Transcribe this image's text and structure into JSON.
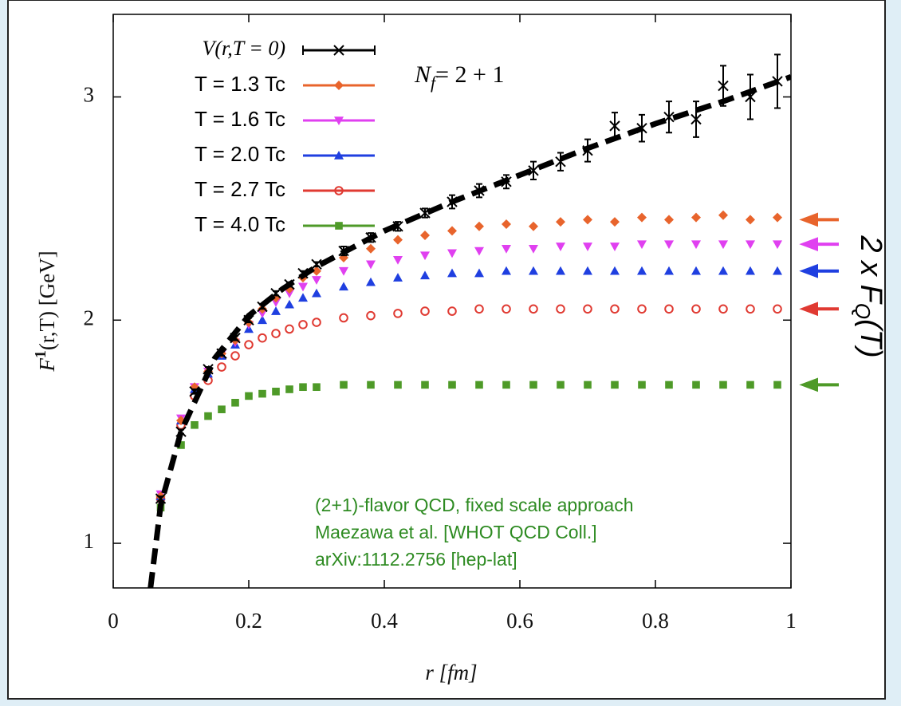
{
  "chart_data": {
    "type": "scatter",
    "xlabel": "r [fm]",
    "ylabel": {
      "main": "F",
      "sup": "1",
      "tail": "(r,T) [GeV]"
    },
    "xlim": [
      0,
      1
    ],
    "ylim": [
      0.8,
      3.37
    ],
    "xticks": [
      0,
      0.2,
      0.4,
      0.6,
      0.8,
      1
    ],
    "yticks": [
      1,
      2,
      3
    ],
    "x": [
      0.07,
      0.1,
      0.12,
      0.14,
      0.16,
      0.18,
      0.2,
      0.22,
      0.24,
      0.26,
      0.28,
      0.3,
      0.34,
      0.38,
      0.42,
      0.46,
      0.5,
      0.54,
      0.58,
      0.62,
      0.66,
      0.7,
      0.74,
      0.78,
      0.82,
      0.86,
      0.9,
      0.94,
      0.98
    ],
    "series": [
      {
        "name": "V(r,T = 0)",
        "color": "#000000",
        "marker": "cross",
        "values": [
          1.2,
          1.5,
          1.68,
          1.78,
          1.85,
          1.92,
          2.0,
          2.06,
          2.12,
          2.16,
          2.21,
          2.25,
          2.31,
          2.37,
          2.42,
          2.48,
          2.53,
          2.58,
          2.62,
          2.67,
          2.71,
          2.76,
          2.87,
          2.86,
          2.91,
          2.9,
          3.05,
          3.0,
          3.07
        ],
        "errors": [
          0.01,
          0.01,
          0.01,
          0.01,
          0.01,
          0.01,
          0.01,
          0.01,
          0.01,
          0.01,
          0.01,
          0.01,
          0.02,
          0.02,
          0.02,
          0.02,
          0.03,
          0.03,
          0.03,
          0.04,
          0.04,
          0.05,
          0.06,
          0.06,
          0.07,
          0.08,
          0.09,
          0.1,
          0.12
        ]
      },
      {
        "name": "T =  1.3 Tc",
        "color": "#e8642c",
        "marker": "diamond",
        "values": [
          1.21,
          1.55,
          1.7,
          1.77,
          1.85,
          1.91,
          1.99,
          2.05,
          2.1,
          2.14,
          2.19,
          2.22,
          2.28,
          2.32,
          2.36,
          2.38,
          2.4,
          2.42,
          2.43,
          2.42,
          2.44,
          2.45,
          2.44,
          2.46,
          2.45,
          2.46,
          2.47,
          2.45,
          2.46
        ]
      },
      {
        "name": "T =  1.6 Tc",
        "color": "#e040f0",
        "marker": "tri-down",
        "values": [
          1.22,
          1.56,
          1.7,
          1.77,
          1.85,
          1.9,
          1.98,
          2.03,
          2.08,
          2.12,
          2.15,
          2.18,
          2.22,
          2.25,
          2.27,
          2.29,
          2.3,
          2.31,
          2.32,
          2.32,
          2.33,
          2.33,
          2.33,
          2.34,
          2.34,
          2.34,
          2.34,
          2.34,
          2.34
        ]
      },
      {
        "name": "T =  2.0 Tc",
        "color": "#1f3fe0",
        "marker": "tri-up",
        "values": [
          1.21,
          1.55,
          1.69,
          1.76,
          1.84,
          1.89,
          1.96,
          2.0,
          2.04,
          2.07,
          2.1,
          2.12,
          2.15,
          2.17,
          2.19,
          2.2,
          2.21,
          2.21,
          2.22,
          2.22,
          2.22,
          2.22,
          2.22,
          2.22,
          2.22,
          2.22,
          2.22,
          2.22,
          2.22
        ]
      },
      {
        "name": "T =  2.7 Tc",
        "color": "#e03a32",
        "marker": "circle",
        "values": [
          1.2,
          1.53,
          1.66,
          1.73,
          1.79,
          1.84,
          1.89,
          1.92,
          1.94,
          1.96,
          1.98,
          1.99,
          2.01,
          2.02,
          2.03,
          2.04,
          2.04,
          2.05,
          2.05,
          2.05,
          2.05,
          2.05,
          2.05,
          2.05,
          2.05,
          2.05,
          2.05,
          2.05,
          2.05
        ]
      },
      {
        "name": "T =  4.0 Tc",
        "color": "#4e9a28",
        "marker": "square",
        "values": [
          1.16,
          1.44,
          1.53,
          1.57,
          1.6,
          1.63,
          1.66,
          1.67,
          1.68,
          1.69,
          1.7,
          1.7,
          1.71,
          1.71,
          1.71,
          1.71,
          1.71,
          1.71,
          1.71,
          1.71,
          1.71,
          1.71,
          1.71,
          1.71,
          1.71,
          1.71,
          1.71,
          1.71,
          1.71
        ]
      }
    ],
    "fit": {
      "color": "#000000",
      "x": [
        0.055,
        0.07,
        0.1,
        0.15,
        0.2,
        0.25,
        0.3,
        0.4,
        0.5,
        0.6,
        0.7,
        0.8,
        0.9,
        1.0
      ],
      "values": [
        0.8,
        1.17,
        1.5,
        1.83,
        2.02,
        2.14,
        2.24,
        2.4,
        2.53,
        2.65,
        2.77,
        2.88,
        2.98,
        3.09
      ]
    },
    "flavor_label": {
      "main": "N",
      "sub": "f",
      "tail": "= 2 + 1"
    },
    "annotation": {
      "color": "#2e8b22",
      "lines": [
        "(2+1)-flavor QCD, fixed scale approach",
        "Maezawa et al. [WHOT QCD Coll.]",
        "arXiv:1112.2756 [hep-lat]"
      ]
    },
    "right_arrows": [
      2.45,
      2.34,
      2.22,
      2.05,
      1.71
    ],
    "right_label": {
      "main": "2 x F",
      "sub": "Q",
      "tail": "(T)"
    }
  }
}
